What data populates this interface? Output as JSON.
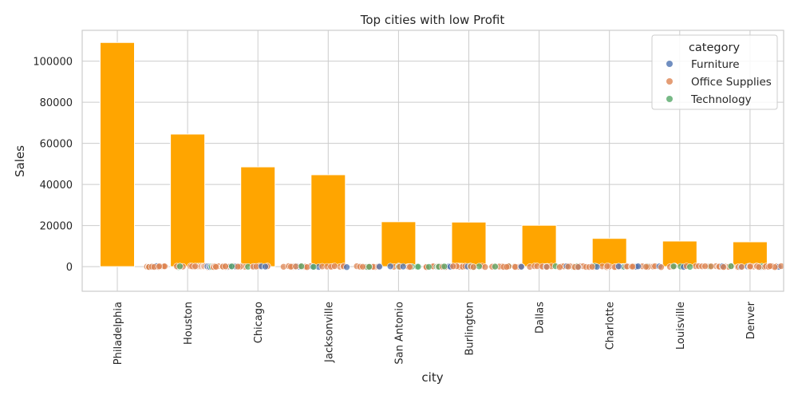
{
  "chart_data": {
    "type": "bar",
    "title": "Top cities with low Profit",
    "xlabel": "city",
    "ylabel": "Sales",
    "categories": [
      "Philadelphia",
      "Houston",
      "Chicago",
      "Jacksonville",
      "San Antonio",
      "Burlington",
      "Dallas",
      "Charlotte",
      "Louisville",
      "Denver"
    ],
    "values": [
      109077,
      64505,
      48540,
      44713,
      21844,
      21668,
      20132,
      13737,
      12448,
      12071
    ],
    "ylim": [
      -12000,
      115000
    ],
    "yticks": [
      0,
      20000,
      40000,
      60000,
      80000,
      100000
    ],
    "ytick_labels": [
      "0",
      "20000",
      "40000",
      "60000",
      "80000",
      "100000"
    ],
    "bar_color": "#FFA500",
    "grid": true,
    "scatter_overlay": {
      "hue": "category",
      "points_value": 0,
      "note_values_near_zero": true
    },
    "legend": {
      "title": "category",
      "placement": "top-right",
      "entries": [
        {
          "label": "Furniture",
          "color": "#4C72B0"
        },
        {
          "label": "Office Supplies",
          "color": "#DD8452"
        },
        {
          "label": "Technology",
          "color": "#55A868"
        }
      ]
    }
  }
}
